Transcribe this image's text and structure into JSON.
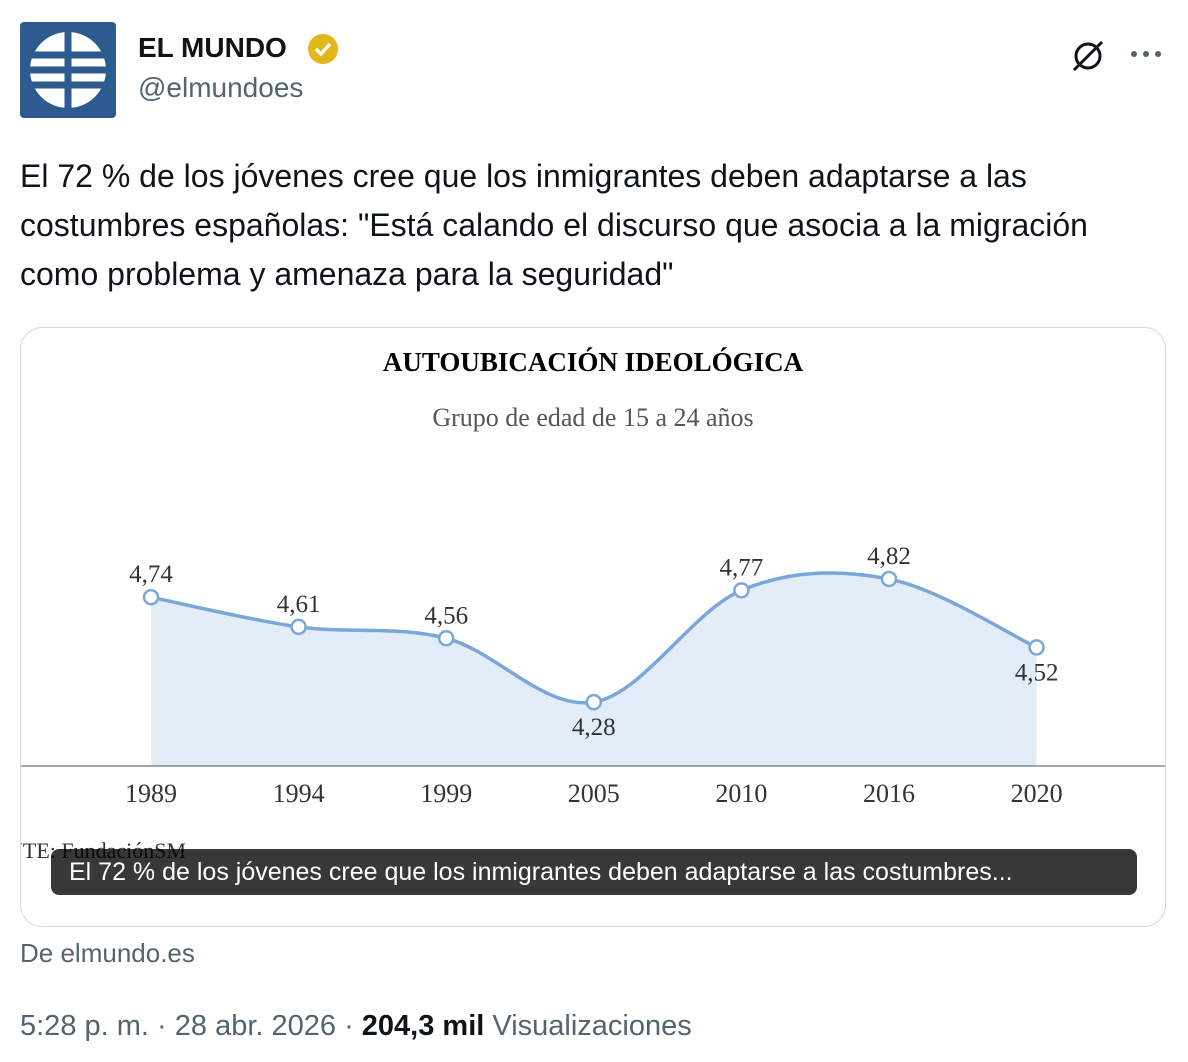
{
  "tweet": {
    "name": "EL MUNDO",
    "handle": "@elmundoes",
    "text": "El 72 % de los jóvenes cree que los inmigrantes deben adaptarse a las costumbres españolas: \"Está calando el discurso que asocia a la migración como problema y amenaza para la seguridad\"",
    "card_caption": "El 72 % de los jóvenes cree que los inmigrantes deben adaptarse a las costumbres...",
    "source": "De elmundo.es",
    "time": "5:28 p. m.",
    "date": "28 abr. 2026",
    "views": "204,3 mil",
    "views_label": "Visualizaciones"
  },
  "chart_data": {
    "type": "line",
    "title": "AUTOUBICACIÓN IDEOLÓGICA",
    "subtitle": "Grupo de edad de 15 a 24 años",
    "source_note": "NTE: FundaciónSM",
    "categories": [
      "1989",
      "1994",
      "1999",
      "2005",
      "2010",
      "2016",
      "2020"
    ],
    "values": [
      4.74,
      4.61,
      4.56,
      4.28,
      4.77,
      4.82,
      4.52
    ],
    "value_labels": [
      "4,74",
      "4,61",
      "4,56",
      "4,28",
      "4,77",
      "4,82",
      "4,52"
    ],
    "color": "#7aa7da",
    "ylim": [
      4,
      5.92
    ]
  }
}
